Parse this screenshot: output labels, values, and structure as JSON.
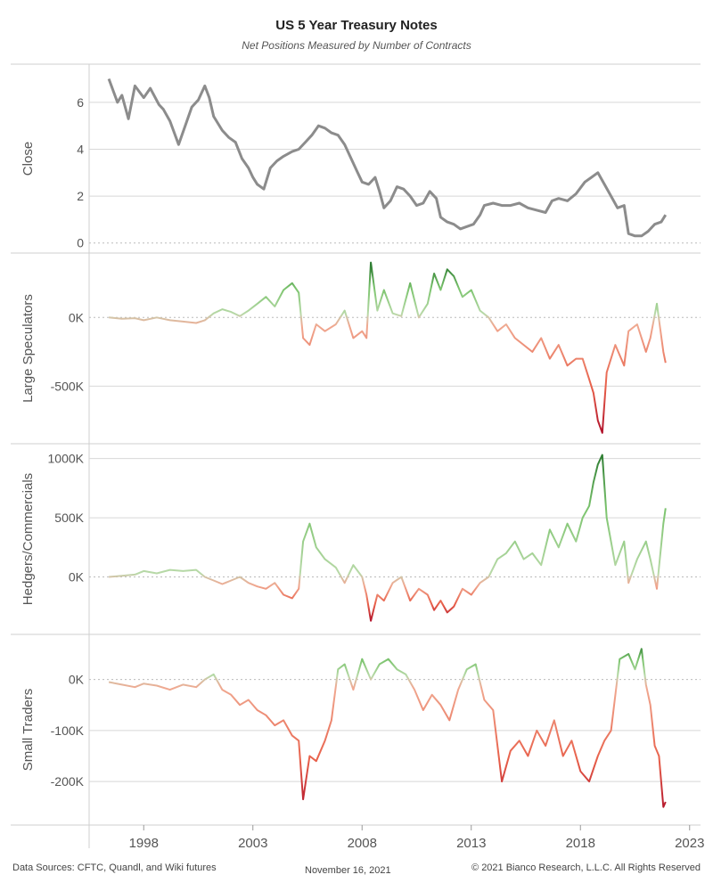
{
  "title": "US 5 Year Treasury Notes",
  "subtitle": "Net Positions Measured by Number of Contracts",
  "footer": {
    "sources": "Data Sources: CFTC, Quandl, and Wiki futures",
    "date": "November 16, 2021",
    "copyright": "© 2021 Bianco Research, L.L.C. All Rights Reserved"
  },
  "colors": {
    "price": "#8c8c8c",
    "positive": "#3a9a3a",
    "neutral": "#d4c4a8",
    "negative": "#d01c2e",
    "grid": "#d8d8d8"
  },
  "chart_data": [
    {
      "type": "line",
      "ylabel": "Close",
      "yticks": [
        0,
        2,
        4,
        6
      ],
      "ytick_labels": [
        "0",
        "2",
        "4",
        "6"
      ],
      "ylim": [
        -0.2,
        7.4
      ],
      "color_mode": "solid",
      "x": [
        1996.4,
        1996.8,
        1997.0,
        1997.3,
        1997.6,
        1998.0,
        1998.3,
        1998.7,
        1998.9,
        1999.2,
        1999.6,
        1999.9,
        2000.2,
        2000.5,
        2000.8,
        2001.0,
        2001.2,
        2001.6,
        2001.9,
        2002.2,
        2002.5,
        2002.8,
        2003.0,
        2003.2,
        2003.5,
        2003.8,
        2004.1,
        2004.4,
        2004.8,
        2005.1,
        2005.4,
        2005.7,
        2006.0,
        2006.3,
        2006.6,
        2006.9,
        2007.2,
        2007.5,
        2007.8,
        2008.0,
        2008.3,
        2008.6,
        2008.8,
        2009.0,
        2009.3,
        2009.6,
        2009.9,
        2010.2,
        2010.5,
        2010.8,
        2011.1,
        2011.4,
        2011.6,
        2011.9,
        2012.2,
        2012.5,
        2012.8,
        2013.1,
        2013.4,
        2013.6,
        2014.0,
        2014.4,
        2014.8,
        2015.2,
        2015.6,
        2016.0,
        2016.4,
        2016.7,
        2017.0,
        2017.4,
        2017.8,
        2018.2,
        2018.5,
        2018.8,
        2019.1,
        2019.4,
        2019.7,
        2020.0,
        2020.2,
        2020.5,
        2020.8,
        2021.1,
        2021.4,
        2021.7,
        2021.9
      ],
      "y": [
        7.0,
        6.0,
        6.3,
        5.3,
        6.7,
        6.2,
        6.6,
        5.9,
        5.7,
        5.2,
        4.2,
        5.0,
        5.8,
        6.1,
        6.7,
        6.2,
        5.4,
        4.8,
        4.5,
        4.3,
        3.6,
        3.2,
        2.8,
        2.5,
        2.3,
        3.2,
        3.5,
        3.7,
        3.9,
        4.0,
        4.3,
        4.6,
        5.0,
        4.9,
        4.7,
        4.6,
        4.2,
        3.6,
        3.0,
        2.6,
        2.5,
        2.8,
        2.2,
        1.5,
        1.8,
        2.4,
        2.3,
        2.0,
        1.6,
        1.7,
        2.2,
        1.9,
        1.1,
        0.9,
        0.8,
        0.6,
        0.7,
        0.8,
        1.2,
        1.6,
        1.7,
        1.6,
        1.6,
        1.7,
        1.5,
        1.4,
        1.3,
        1.8,
        1.9,
        1.8,
        2.1,
        2.6,
        2.8,
        3.0,
        2.5,
        2.0,
        1.5,
        1.6,
        0.4,
        0.3,
        0.3,
        0.5,
        0.8,
        0.9,
        1.2
      ]
    },
    {
      "type": "line",
      "ylabel": "Large Speculators",
      "yticks": [
        0,
        -500000
      ],
      "ytick_labels": [
        "0K",
        "-500K"
      ],
      "ylim": [
        -880000,
        430000
      ],
      "color_mode": "diverging",
      "color_range": [
        -840000,
        380000
      ],
      "x": [
        1996.4,
        1997.0,
        1997.6,
        1998.0,
        1998.6,
        1999.2,
        1999.8,
        2000.4,
        2000.8,
        2001.2,
        2001.6,
        2002.0,
        2002.4,
        2002.8,
        2003.2,
        2003.6,
        2004.0,
        2004.4,
        2004.8,
        2005.1,
        2005.3,
        2005.6,
        2005.9,
        2006.3,
        2006.8,
        2007.2,
        2007.6,
        2008.0,
        2008.2,
        2008.4,
        2008.7,
        2009.0,
        2009.4,
        2009.8,
        2010.2,
        2010.6,
        2011.0,
        2011.3,
        2011.6,
        2011.9,
        2012.2,
        2012.6,
        2013.0,
        2013.4,
        2013.8,
        2014.2,
        2014.6,
        2015.0,
        2015.4,
        2015.8,
        2016.2,
        2016.6,
        2017.0,
        2017.4,
        2017.8,
        2018.1,
        2018.4,
        2018.6,
        2018.8,
        2019.0,
        2019.2,
        2019.6,
        2020.0,
        2020.2,
        2020.6,
        2021.0,
        2021.2,
        2021.5,
        2021.8,
        2021.9
      ],
      "y": [
        0,
        -10000,
        -5000,
        -20000,
        0,
        -20000,
        -30000,
        -40000,
        -20000,
        30000,
        60000,
        40000,
        10000,
        50000,
        100000,
        150000,
        80000,
        200000,
        250000,
        180000,
        -150000,
        -200000,
        -50000,
        -100000,
        -50000,
        50000,
        -150000,
        -100000,
        -150000,
        400000,
        50000,
        200000,
        30000,
        10000,
        250000,
        0,
        100000,
        320000,
        200000,
        350000,
        300000,
        150000,
        200000,
        50000,
        0,
        -100000,
        -50000,
        -150000,
        -200000,
        -250000,
        -150000,
        -300000,
        -200000,
        -350000,
        -300000,
        -300000,
        -450000,
        -550000,
        -750000,
        -840000,
        -400000,
        -200000,
        -350000,
        -100000,
        -50000,
        -250000,
        -150000,
        100000,
        -250000,
        -330000
      ]
    },
    {
      "type": "line",
      "ylabel": "Hedgers/Commercials",
      "yticks": [
        0,
        500000,
        1000000
      ],
      "ytick_labels": [
        "0K",
        "500K",
        "1000K"
      ],
      "ylim": [
        -440000,
        1080000
      ],
      "color_mode": "diverging",
      "color_range": [
        -380000,
        1030000
      ],
      "x": [
        1996.4,
        1997.0,
        1997.6,
        1998.0,
        1998.6,
        1999.2,
        1999.8,
        2000.4,
        2000.8,
        2001.2,
        2001.6,
        2002.0,
        2002.4,
        2002.8,
        2003.2,
        2003.6,
        2004.0,
        2004.4,
        2004.8,
        2005.1,
        2005.3,
        2005.6,
        2005.9,
        2006.3,
        2006.8,
        2007.2,
        2007.6,
        2008.0,
        2008.2,
        2008.4,
        2008.7,
        2009.0,
        2009.4,
        2009.8,
        2010.2,
        2010.6,
        2011.0,
        2011.3,
        2011.6,
        2011.9,
        2012.2,
        2012.6,
        2013.0,
        2013.4,
        2013.8,
        2014.2,
        2014.6,
        2015.0,
        2015.4,
        2015.8,
        2016.2,
        2016.6,
        2017.0,
        2017.4,
        2017.8,
        2018.1,
        2018.4,
        2018.6,
        2018.8,
        2019.0,
        2019.2,
        2019.6,
        2020.0,
        2020.2,
        2020.6,
        2021.0,
        2021.2,
        2021.5,
        2021.8,
        2021.9
      ],
      "y": [
        0,
        10000,
        20000,
        50000,
        30000,
        60000,
        50000,
        60000,
        0,
        -30000,
        -60000,
        -30000,
        0,
        -50000,
        -80000,
        -100000,
        -50000,
        -150000,
        -180000,
        -100000,
        300000,
        450000,
        250000,
        150000,
        80000,
        -50000,
        100000,
        0,
        -150000,
        -370000,
        -150000,
        -200000,
        -50000,
        0,
        -200000,
        -100000,
        -150000,
        -280000,
        -200000,
        -300000,
        -250000,
        -100000,
        -150000,
        -50000,
        0,
        150000,
        200000,
        300000,
        150000,
        200000,
        100000,
        400000,
        250000,
        450000,
        300000,
        500000,
        600000,
        800000,
        950000,
        1030000,
        500000,
        100000,
        300000,
        -50000,
        150000,
        300000,
        150000,
        -100000,
        450000,
        580000
      ]
    },
    {
      "type": "line",
      "ylabel": "Small Traders",
      "yticks": [
        0,
        -100000,
        -200000
      ],
      "ytick_labels": [
        "0K",
        "-100K",
        "-200K"
      ],
      "ylim": [
        -275000,
        78000
      ],
      "color_mode": "diverging",
      "color_range": [
        -262000,
        70000
      ],
      "x": [
        1996.4,
        1997.0,
        1997.6,
        1998.0,
        1998.6,
        1999.2,
        1999.8,
        2000.4,
        2000.8,
        2001.2,
        2001.6,
        2002.0,
        2002.4,
        2002.8,
        2003.2,
        2003.6,
        2004.0,
        2004.4,
        2004.8,
        2005.1,
        2005.3,
        2005.6,
        2005.9,
        2006.3,
        2006.6,
        2006.9,
        2007.2,
        2007.6,
        2008.0,
        2008.4,
        2008.8,
        2009.2,
        2009.6,
        2010.0,
        2010.4,
        2010.8,
        2011.2,
        2011.6,
        2012.0,
        2012.4,
        2012.8,
        2013.2,
        2013.6,
        2014.0,
        2014.4,
        2014.8,
        2015.2,
        2015.6,
        2016.0,
        2016.4,
        2016.8,
        2017.2,
        2017.6,
        2018.0,
        2018.4,
        2018.8,
        2019.1,
        2019.4,
        2019.8,
        2020.2,
        2020.5,
        2020.8,
        2021.0,
        2021.2,
        2021.4,
        2021.6,
        2021.8,
        2021.9
      ],
      "y": [
        -5000,
        -10000,
        -15000,
        -8000,
        -12000,
        -20000,
        -10000,
        -15000,
        0,
        10000,
        -20000,
        -30000,
        -50000,
        -40000,
        -60000,
        -70000,
        -90000,
        -80000,
        -110000,
        -120000,
        -235000,
        -150000,
        -160000,
        -120000,
        -80000,
        20000,
        30000,
        -20000,
        40000,
        0,
        30000,
        40000,
        20000,
        10000,
        -20000,
        -60000,
        -30000,
        -50000,
        -80000,
        -20000,
        20000,
        30000,
        -40000,
        -60000,
        -200000,
        -140000,
        -120000,
        -150000,
        -100000,
        -130000,
        -80000,
        -150000,
        -120000,
        -180000,
        -200000,
        -150000,
        -120000,
        -100000,
        40000,
        50000,
        20000,
        60000,
        -10000,
        -50000,
        -130000,
        -150000,
        -250000,
        -240000
      ]
    }
  ],
  "x_axis": {
    "min": 1995.5,
    "max": 2023.5,
    "ticks": [
      1998,
      2003,
      2008,
      2013,
      2018,
      2023
    ],
    "tick_labels": [
      "1998",
      "2003",
      "2008",
      "2013",
      "2018",
      "2023"
    ]
  }
}
